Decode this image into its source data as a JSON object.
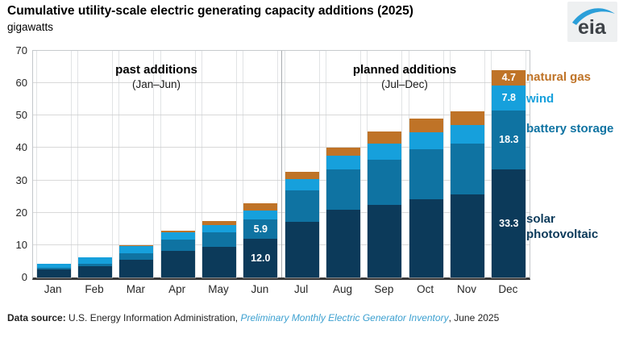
{
  "header": {
    "title": "Cumulative utility-scale electric generating capacity additions (2025)",
    "subtitle": "gigawatts",
    "logo_text": "eia"
  },
  "chart_data": {
    "type": "bar",
    "stacked": true,
    "title": "Cumulative utility-scale electric generating capacity additions (2025)",
    "ylabel": "gigawatts",
    "xlabel": "",
    "categories": [
      "Jan",
      "Feb",
      "Mar",
      "Apr",
      "May",
      "Jun",
      "Jul",
      "Aug",
      "Sep",
      "Oct",
      "Nov",
      "Dec"
    ],
    "series": [
      {
        "name": "solar photovoltaic",
        "color": "#0c3a5a",
        "values": [
          2.6,
          3.4,
          5.5,
          8.2,
          9.4,
          12.0,
          17.3,
          20.9,
          22.4,
          24.2,
          25.6,
          33.3
        ]
      },
      {
        "name": "battery storage",
        "color": "#0f73a2",
        "values": [
          0.3,
          0.8,
          2.0,
          3.5,
          4.5,
          5.9,
          9.6,
          12.5,
          14.0,
          15.4,
          15.8,
          18.3
        ]
      },
      {
        "name": "wind",
        "color": "#16a0dc",
        "values": [
          1.3,
          2.0,
          2.2,
          2.2,
          2.3,
          2.7,
          3.6,
          4.2,
          5.0,
          5.2,
          5.6,
          7.8
        ]
      },
      {
        "name": "natural gas",
        "color": "#bf7327",
        "values": [
          0.1,
          0.1,
          0.3,
          0.5,
          1.2,
          2.2,
          2.2,
          2.5,
          3.6,
          4.3,
          4.4,
          4.7
        ]
      }
    ],
    "ylim": [
      0,
      70
    ],
    "yticks": [
      0,
      10,
      20,
      30,
      40,
      50,
      60,
      70
    ],
    "grid": true,
    "legend_position": "right",
    "section_divider_after": "Jun",
    "annotations": {
      "past": {
        "title": "past additions",
        "subtitle": "(Jan–Jun)"
      },
      "planned": {
        "title": "planned additions",
        "subtitle": "(Jul–Dec)"
      }
    },
    "bar_labels": [
      {
        "month": "Jun",
        "series": "battery storage",
        "text": "5.9"
      },
      {
        "month": "Jun",
        "series": "solar photovoltaic",
        "text": "12.0"
      },
      {
        "month": "Dec",
        "series": "natural gas",
        "text": "4.7"
      },
      {
        "month": "Dec",
        "series": "wind",
        "text": "7.8"
      },
      {
        "month": "Dec",
        "series": "battery storage",
        "text": "18.3"
      },
      {
        "month": "Dec",
        "series": "solar photovoltaic",
        "text": "33.3"
      }
    ],
    "legend": {
      "natural_gas": "natural gas",
      "wind": "wind",
      "battery_storage": "battery storage",
      "solar_photovoltaic": "solar photovoltaic"
    }
  },
  "footer": {
    "label": "Data source: ",
    "text": "U.S. Energy Information Administration, ",
    "link": "Preliminary Monthly Electric Generator Inventory",
    "suffix": ", June 2025"
  }
}
